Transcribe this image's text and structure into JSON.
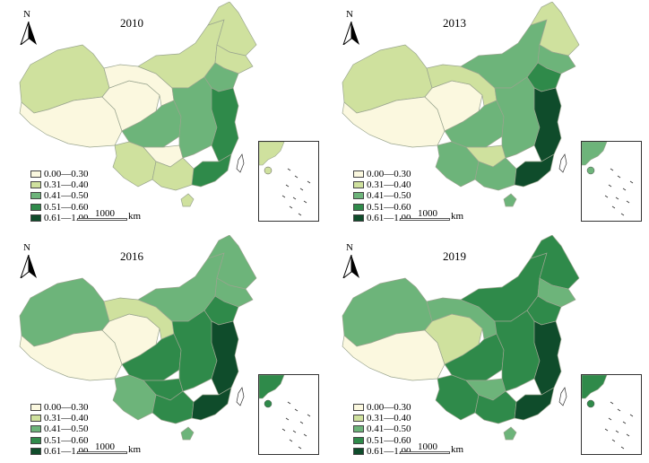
{
  "colors": {
    "c1": "#fbf8df",
    "c2": "#cfe19e",
    "c3": "#6db47a",
    "c4": "#2f8a4a",
    "c5": "#0f4c2b",
    "border": "#9aa58f",
    "inset_dash": "#333333"
  },
  "north_label": "N",
  "legend": [
    {
      "label": "0.00—0.30",
      "color_key": "c1"
    },
    {
      "label": "0.31—0.40",
      "color_key": "c2"
    },
    {
      "label": "0.41—0.50",
      "color_key": "c3"
    },
    {
      "label": "0.51—0.60",
      "color_key": "c4"
    },
    {
      "label": "0.61—1.00",
      "color_key": "c5"
    }
  ],
  "scale": {
    "value": "1000",
    "unit": "km"
  },
  "panels": [
    {
      "year": "2010",
      "classes": {
        "xinjiang": "c2",
        "tibet": "c1",
        "qinghai": "c1",
        "gansu": "c1",
        "innermongolia": "c2",
        "heilongjiang": "c2",
        "jilin": "c2",
        "liaoning": "c3",
        "sichuan": "c3",
        "yunnan": "c2",
        "guizhou": "c1",
        "guangxi": "c2",
        "central": "c3",
        "east": "c4",
        "guangdong": "c4",
        "hainan": "c2",
        "inset": "c2"
      }
    },
    {
      "year": "2013",
      "classes": {
        "xinjiang": "c2",
        "tibet": "c1",
        "qinghai": "c1",
        "gansu": "c2",
        "innermongolia": "c3",
        "heilongjiang": "c2",
        "jilin": "c3",
        "liaoning": "c4",
        "sichuan": "c3",
        "yunnan": "c3",
        "guizhou": "c2",
        "guangxi": "c3",
        "central": "c3",
        "east": "c5",
        "guangdong": "c5",
        "hainan": "c3",
        "inset": "c3"
      }
    },
    {
      "year": "2016",
      "classes": {
        "xinjiang": "c3",
        "tibet": "c1",
        "qinghai": "c1",
        "gansu": "c2",
        "innermongolia": "c3",
        "heilongjiang": "c3",
        "jilin": "c3",
        "liaoning": "c4",
        "sichuan": "c4",
        "yunnan": "c3",
        "guizhou": "c4",
        "guangxi": "c4",
        "central": "c4",
        "east": "c5",
        "guangdong": "c5",
        "hainan": "c3",
        "inset": "c4"
      }
    },
    {
      "year": "2019",
      "classes": {
        "xinjiang": "c3",
        "tibet": "c1",
        "qinghai": "c2",
        "gansu": "c3",
        "innermongolia": "c4",
        "heilongjiang": "c4",
        "jilin": "c3",
        "liaoning": "c4",
        "sichuan": "c4",
        "yunnan": "c4",
        "guizhou": "c3",
        "guangxi": "c4",
        "central": "c4",
        "east": "c5",
        "guangdong": "c5",
        "hainan": "c3",
        "inset": "c4"
      }
    }
  ]
}
